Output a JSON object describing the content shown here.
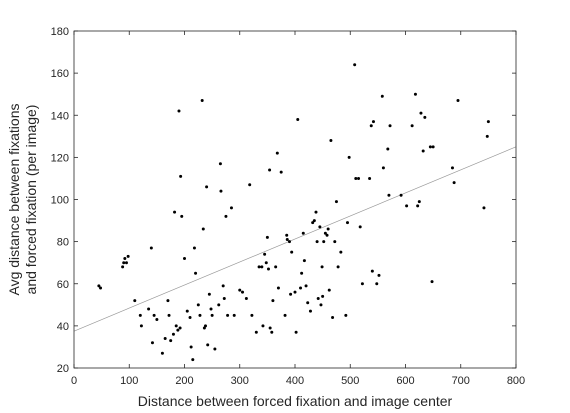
{
  "chart_data": {
    "type": "scatter",
    "title": "",
    "xlabel": "Distance between forced fixation and image center",
    "ylabel_lines": [
      "Avg distance between fixations",
      "and forced fixation (per image)"
    ],
    "xlim": [
      0,
      800
    ],
    "ylim": [
      20,
      180
    ],
    "xticks": [
      0,
      100,
      200,
      300,
      400,
      500,
      600,
      700,
      800
    ],
    "yticks": [
      20,
      40,
      60,
      80,
      100,
      120,
      140,
      160,
      180
    ],
    "grid": false,
    "legend": "none",
    "colors": {
      "points": "#000000",
      "fit_line": "#9a9a9a",
      "axis": "#262626"
    },
    "fit_line": {
      "x": [
        0,
        800
      ],
      "y": [
        37.5,
        125
      ]
    },
    "points": [
      [
        45,
        59
      ],
      [
        48,
        58
      ],
      [
        88,
        68
      ],
      [
        90,
        70
      ],
      [
        92,
        72
      ],
      [
        95,
        70
      ],
      [
        98,
        73
      ],
      [
        110,
        52
      ],
      [
        120,
        45
      ],
      [
        122,
        40
      ],
      [
        135,
        48
      ],
      [
        140,
        77
      ],
      [
        142,
        32
      ],
      [
        145,
        45
      ],
      [
        150,
        43
      ],
      [
        160,
        27
      ],
      [
        165,
        34
      ],
      [
        170,
        52
      ],
      [
        172,
        45
      ],
      [
        175,
        33
      ],
      [
        180,
        36
      ],
      [
        182,
        94
      ],
      [
        185,
        40
      ],
      [
        188,
        38
      ],
      [
        190,
        142
      ],
      [
        192,
        39
      ],
      [
        193,
        111
      ],
      [
        195,
        92
      ],
      [
        200,
        72
      ],
      [
        205,
        47
      ],
      [
        210,
        44
      ],
      [
        212,
        30
      ],
      [
        215,
        24
      ],
      [
        218,
        77
      ],
      [
        220,
        65
      ],
      [
        225,
        50
      ],
      [
        228,
        45
      ],
      [
        232,
        147
      ],
      [
        234,
        86
      ],
      [
        236,
        39
      ],
      [
        238,
        40
      ],
      [
        240,
        106
      ],
      [
        242,
        31
      ],
      [
        245,
        55
      ],
      [
        248,
        48
      ],
      [
        250,
        45
      ],
      [
        255,
        29
      ],
      [
        262,
        50
      ],
      [
        265,
        117
      ],
      [
        266,
        104
      ],
      [
        270,
        59
      ],
      [
        272,
        53
      ],
      [
        275,
        92
      ],
      [
        278,
        45
      ],
      [
        285,
        96
      ],
      [
        290,
        45
      ],
      [
        300,
        57
      ],
      [
        305,
        56
      ],
      [
        312,
        53
      ],
      [
        318,
        107
      ],
      [
        322,
        45
      ],
      [
        330,
        37
      ],
      [
        335,
        68
      ],
      [
        340,
        68
      ],
      [
        342,
        40
      ],
      [
        345,
        74
      ],
      [
        348,
        70
      ],
      [
        350,
        82
      ],
      [
        352,
        67
      ],
      [
        354,
        114
      ],
      [
        355,
        39
      ],
      [
        358,
        37
      ],
      [
        360,
        52
      ],
      [
        365,
        68
      ],
      [
        368,
        122
      ],
      [
        370,
        58
      ],
      [
        375,
        113
      ],
      [
        382,
        45
      ],
      [
        385,
        83
      ],
      [
        386,
        81
      ],
      [
        390,
        80
      ],
      [
        392,
        55
      ],
      [
        394,
        75
      ],
      [
        400,
        56
      ],
      [
        402,
        37
      ],
      [
        405,
        138
      ],
      [
        410,
        58
      ],
      [
        412,
        65
      ],
      [
        415,
        84
      ],
      [
        417,
        71
      ],
      [
        420,
        59
      ],
      [
        423,
        51
      ],
      [
        428,
        47
      ],
      [
        432,
        89
      ],
      [
        435,
        90
      ],
      [
        438,
        94
      ],
      [
        440,
        80
      ],
      [
        442,
        53
      ],
      [
        445,
        87
      ],
      [
        447,
        50
      ],
      [
        449,
        68
      ],
      [
        450,
        54
      ],
      [
        452,
        80
      ],
      [
        455,
        84
      ],
      [
        458,
        83
      ],
      [
        460,
        86
      ],
      [
        462,
        57
      ],
      [
        465,
        128
      ],
      [
        468,
        44
      ],
      [
        472,
        80
      ],
      [
        475,
        99
      ],
      [
        478,
        68
      ],
      [
        483,
        75
      ],
      [
        492,
        45
      ],
      [
        495,
        89
      ],
      [
        498,
        120
      ],
      [
        508,
        164
      ],
      [
        510,
        110
      ],
      [
        515,
        110
      ],
      [
        518,
        87
      ],
      [
        522,
        60
      ],
      [
        535,
        110
      ],
      [
        538,
        135
      ],
      [
        540,
        66
      ],
      [
        542,
        137
      ],
      [
        548,
        60
      ],
      [
        552,
        64
      ],
      [
        558,
        149
      ],
      [
        560,
        115
      ],
      [
        568,
        124
      ],
      [
        570,
        102
      ],
      [
        572,
        135
      ],
      [
        592,
        102
      ],
      [
        602,
        97
      ],
      [
        612,
        135
      ],
      [
        618,
        150
      ],
      [
        622,
        97
      ],
      [
        625,
        99
      ],
      [
        628,
        141
      ],
      [
        632,
        123
      ],
      [
        635,
        139
      ],
      [
        645,
        125
      ],
      [
        648,
        61
      ],
      [
        650,
        125
      ],
      [
        685,
        115
      ],
      [
        688,
        108
      ],
      [
        695,
        147
      ],
      [
        742,
        96
      ],
      [
        748,
        130
      ],
      [
        750,
        137
      ]
    ]
  }
}
